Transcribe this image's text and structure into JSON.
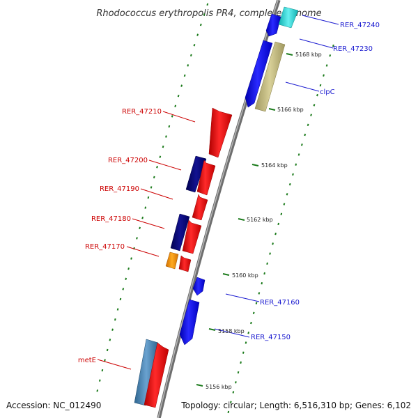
{
  "title": "Rhodococcus erythropolis PR4, complete genome",
  "footer": {
    "accession": "Accession: NC_012490",
    "topology": "Topology: circular; Length: 6,516,310 bp; Genes: 6,102"
  },
  "scale_labels": [
    "5168 kbp",
    "5166 kbp",
    "5164 kbp",
    "5162 kbp",
    "5160 kbp",
    "5158 kbp",
    "5156 kbp"
  ],
  "gene_labels_left": [
    "RER_47210",
    "RER_47200",
    "RER_47190",
    "RER_47180",
    "RER_47170",
    "metE"
  ],
  "gene_labels_right": [
    "RER_47240",
    "RER_47230",
    "clpC",
    "RER_47160",
    "RER_47150"
  ],
  "colors": {
    "forward_strand_red": "#ee1111",
    "reverse_strand_blue": "#1a1af0",
    "navy": "#0b0b7a",
    "orange": "#ff9900",
    "olive": "#c8c080",
    "steelblue": "#4a86b8",
    "cyan": "#33dddd",
    "backbone": "#8c8c8c",
    "tick_green": "#1a7a1a"
  }
}
